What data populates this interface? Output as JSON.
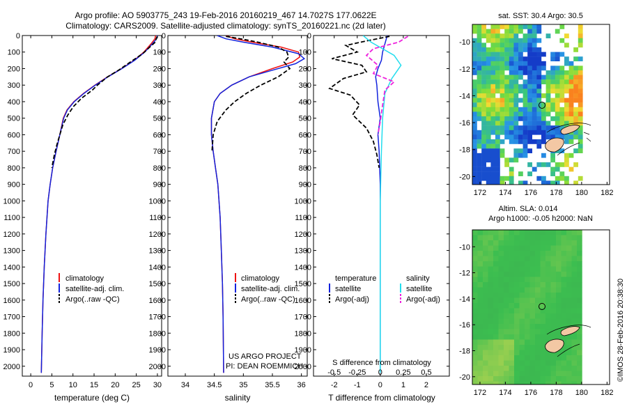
{
  "header": {
    "line1": "Argo profile: AO 5903775_243 19-Feb-2016 20160219_467 14.7027S 177.0622E",
    "line2": "Climatology: CARS2009. Satellite-adjusted climatology: synTS_20160221.nc (2d later)"
  },
  "credit": "©IMOS 28-Feb-2016 20:38:30",
  "colors": {
    "climatology": "#ee1111",
    "satellite": "#1122dd",
    "argo": "#000000",
    "sal_satellite": "#22ddee",
    "sal_argo": "#ee22dd"
  },
  "chart_data": [
    {
      "type": "line",
      "id": "temperature",
      "xlabel": "temperature (deg C)",
      "ylabel": "",
      "xlim": [
        -2,
        31
      ],
      "ylim": [
        2060,
        0
      ],
      "xticks": [
        0,
        5,
        10,
        15,
        20,
        25,
        30
      ],
      "yticks": [
        0,
        100,
        200,
        300,
        400,
        500,
        600,
        700,
        800,
        900,
        1000,
        1100,
        1200,
        1300,
        1400,
        1500,
        1600,
        1700,
        1800,
        1900,
        2000
      ],
      "legend": {
        "placement": "lower-middle",
        "labels": [
          "climatology",
          "satellite-adj. clim.",
          "Argo(..raw -QC)"
        ]
      },
      "series": [
        {
          "name": "climatology",
          "style": "solid",
          "color": "climatology",
          "x": [
            29.6,
            29.4,
            28.5,
            26.8,
            24.5,
            21.5,
            18.2,
            15.2,
            12.5,
            10.2,
            8.6,
            7.7,
            6.9,
            6.0,
            5.2,
            4.6,
            4.1,
            3.6,
            3.2,
            2.9,
            2.7,
            2.5
          ],
          "y": [
            0,
            20,
            50,
            100,
            150,
            200,
            250,
            300,
            350,
            400,
            450,
            500,
            600,
            700,
            800,
            900,
            1000,
            1200,
            1400,
            1600,
            1800,
            2040
          ]
        },
        {
          "name": "satellite-adj. clim.",
          "style": "solid",
          "color": "satellite",
          "x": [
            30.0,
            29.8,
            28.8,
            27.0,
            24.6,
            21.6,
            18.3,
            15.3,
            12.6,
            10.3,
            8.7,
            7.8,
            6.9,
            6.0,
            5.2,
            4.6,
            4.1,
            3.6,
            3.2,
            2.9,
            2.7,
            2.5
          ],
          "y": [
            0,
            20,
            50,
            100,
            150,
            200,
            250,
            300,
            350,
            400,
            450,
            500,
            600,
            700,
            800,
            900,
            1000,
            1200,
            1400,
            1600,
            1800,
            2040
          ]
        },
        {
          "name": "Argo(..raw -QC)",
          "style": "dashed",
          "color": "argo",
          "x": [
            30.0,
            29.7,
            29.5,
            28.2,
            26.5,
            23.6,
            20.8,
            18.2,
            15.8,
            14.6,
            12.0,
            10.1,
            8.8,
            7.6,
            6.9,
            6.2,
            5.6,
            5.0
          ],
          "y": [
            5,
            20,
            40,
            70,
            110,
            160,
            210,
            250,
            300,
            330,
            380,
            430,
            480,
            540,
            600,
            660,
            720,
            800
          ]
        }
      ]
    },
    {
      "type": "line",
      "id": "salinity",
      "xlabel": "salinity",
      "ylabel": "",
      "xlim": [
        33.7,
        36.1
      ],
      "ylim": [
        2060,
        0
      ],
      "xticks": [
        34,
        34.5,
        35,
        35.5,
        36
      ],
      "legend": {
        "placement": "lower-middle",
        "labels": [
          "climatology",
          "satellite-adj. clim.",
          "Argo(..raw -QC)"
        ]
      },
      "annotations": [
        "US ARGO PROJECT",
        "PI: DEAN ROEMMICH"
      ],
      "series": [
        {
          "name": "climatology",
          "style": "solid",
          "color": "climatology",
          "x": [
            34.7,
            34.85,
            35.15,
            35.65,
            35.95,
            35.97,
            35.85,
            35.5,
            35.1,
            34.8,
            34.6,
            34.5,
            34.45,
            34.45,
            34.48,
            34.52,
            34.56,
            34.6,
            34.62,
            34.64,
            34.65,
            34.66
          ],
          "y": [
            0,
            20,
            40,
            70,
            100,
            130,
            160,
            200,
            250,
            300,
            350,
            400,
            500,
            600,
            700,
            800,
            900,
            1100,
            1300,
            1500,
            1700,
            2040
          ]
        },
        {
          "name": "satellite-adj. clim.",
          "style": "solid",
          "color": "satellite",
          "x": [
            34.55,
            34.7,
            35.0,
            35.5,
            35.95,
            36.05,
            35.9,
            35.5,
            35.1,
            34.8,
            34.6,
            34.5,
            34.45,
            34.45,
            34.48,
            34.52,
            34.56,
            34.6,
            34.62,
            34.64,
            34.65,
            34.66
          ],
          "y": [
            0,
            20,
            40,
            70,
            110,
            140,
            170,
            210,
            250,
            300,
            350,
            400,
            500,
            600,
            700,
            800,
            900,
            1100,
            1300,
            1500,
            1700,
            2040
          ]
        },
        {
          "name": "Argo(..raw -QC)",
          "style": "dashed",
          "color": "argo",
          "x": [
            34.7,
            34.95,
            35.25,
            35.6,
            35.75,
            35.78,
            35.7,
            35.8,
            35.6,
            35.3,
            35.05,
            34.85,
            34.7,
            34.55,
            34.48,
            34.46
          ],
          "y": [
            5,
            20,
            40,
            70,
            100,
            130,
            160,
            200,
            250,
            300,
            350,
            400,
            450,
            520,
            600,
            700
          ]
        }
      ]
    },
    {
      "type": "line",
      "id": "difference",
      "xlabel": "T difference from climatology",
      "xlabel_top": "S difference from climatology",
      "xlim": [
        -2.9,
        3.0
      ],
      "ylim": [
        2060,
        0
      ],
      "xticks": [
        -2,
        -1,
        0,
        1,
        2
      ],
      "xticks_top": [
        -0.5,
        -0.25,
        0,
        0.25,
        0.5
      ],
      "legend": {
        "placement": "lower-middle",
        "temperature_header": "temperature",
        "salinity_header": "salinity",
        "labels": [
          "satellite",
          "Argo(-adj)",
          "satellite",
          "Argo(-adj)"
        ]
      },
      "series": [
        {
          "name": "temperature satellite",
          "style": "solid",
          "color": "satellite",
          "x": [
            0.3,
            0.2,
            0.1,
            0.05,
            -0.1,
            -0.2,
            -0.15,
            -0.1,
            0.0,
            -0.1,
            -0.05,
            0.0,
            0.0
          ],
          "y": [
            0,
            50,
            100,
            150,
            200,
            250,
            300,
            400,
            500,
            600,
            700,
            900,
            2040
          ]
        },
        {
          "name": "temperature Argo(-adj)",
          "style": "dashed",
          "color": "argo",
          "x": [
            0.4,
            -0.5,
            -1.5,
            -1.0,
            -2.1,
            -0.8,
            -0.6,
            -1.6,
            -2.2,
            -1.3,
            -0.9,
            -1.2,
            -0.6,
            -0.3,
            -0.15,
            -0.05
          ],
          "y": [
            5,
            30,
            60,
            100,
            140,
            180,
            220,
            260,
            320,
            360,
            420,
            480,
            560,
            640,
            720,
            800
          ]
        },
        {
          "name": "salinity satellite",
          "style": "solid",
          "color": "sal_satellite",
          "x": [
            -0.75,
            -0.4,
            0.1,
            0.6,
            0.9,
            0.5,
            0.2,
            0.1,
            0.05,
            0.0,
            0.0
          ],
          "y": [
            0,
            40,
            80,
            120,
            180,
            260,
            350,
            500,
            700,
            1000,
            2040
          ]
        },
        {
          "name": "salinity Argo(-adj)",
          "style": "dashed",
          "color": "sal_argo",
          "x": [
            1.2,
            0.8,
            -0.3,
            -0.6,
            -0.1,
            -0.3,
            0.6,
            0.2,
            0.1,
            0.0,
            -0.1
          ],
          "y": [
            5,
            40,
            80,
            120,
            180,
            230,
            280,
            330,
            420,
            520,
            600
          ]
        }
      ]
    }
  ],
  "maps": {
    "sst": {
      "title": "sat. SST: 30.4 Argo: 30.5",
      "xticks": [
        172,
        174,
        176,
        178,
        180,
        182
      ],
      "yticks": [
        -10,
        -12,
        -14,
        -16,
        -18,
        -20
      ]
    },
    "sla": {
      "title_line1": "Altim. SLA: 0.014",
      "title_line2": "Argo h1000: -0.05 h2000: NaN",
      "xticks": [
        172,
        174,
        176,
        178,
        180,
        182
      ],
      "yticks": [
        -10,
        -12,
        -14,
        -16,
        -18,
        -20
      ]
    },
    "float_position": {
      "lon": 177.06,
      "lat": -14.7
    }
  }
}
